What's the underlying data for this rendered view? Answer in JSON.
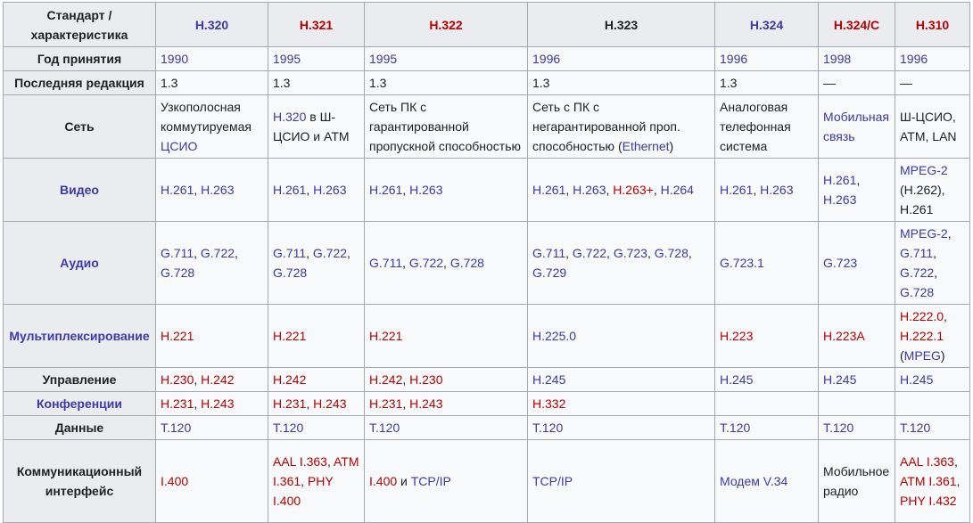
{
  "header": {
    "corner": "Стандарт / характеристика",
    "standards": [
      {
        "label": "H.320",
        "color": "blue"
      },
      {
        "label": "H.321",
        "color": "red"
      },
      {
        "label": "H.322",
        "color": "red"
      },
      {
        "label": "H.323",
        "color": "black"
      },
      {
        "label": "H.324",
        "color": "blue"
      },
      {
        "label": "H.324/C",
        "color": "red"
      },
      {
        "label": "H.310",
        "color": "red"
      }
    ]
  },
  "rows": [
    {
      "key": "year",
      "label": "Год принятия",
      "cells": [
        [
          {
            "t": "1990",
            "c": "blue"
          }
        ],
        [
          {
            "t": "1995",
            "c": "blue"
          }
        ],
        [
          {
            "t": "1995",
            "c": "blue"
          }
        ],
        [
          {
            "t": "1996",
            "c": "blue"
          }
        ],
        [
          {
            "t": "1996",
            "c": "blue"
          }
        ],
        [
          {
            "t": "1998",
            "c": "blue"
          }
        ],
        [
          {
            "t": "1996",
            "c": "blue"
          }
        ]
      ]
    },
    {
      "key": "rev",
      "label": "Последняя редакция",
      "cells": [
        [
          {
            "t": "1.3"
          }
        ],
        [
          {
            "t": "1.3"
          }
        ],
        [
          {
            "t": "1.3"
          }
        ],
        [
          {
            "t": "1.3"
          }
        ],
        [
          {
            "t": "1.3"
          }
        ],
        [
          {
            "t": "—"
          }
        ],
        [
          {
            "t": "—"
          }
        ]
      ]
    },
    {
      "key": "net",
      "label": "Сеть",
      "cells": [
        [
          {
            "t": "Узкополосная коммутируемая "
          },
          {
            "t": "ЦСИО",
            "c": "blue"
          }
        ],
        [
          {
            "t": "H.320",
            "c": "blue"
          },
          {
            "t": " в Ш-ЦСИО и ATM"
          }
        ],
        [
          {
            "t": "Сеть ПК с гарантированной пропускной способностью"
          }
        ],
        [
          {
            "t": "Сеть с ПК с негарантированной проп. способностью ("
          },
          {
            "t": "Ethernet",
            "c": "blue"
          },
          {
            "t": ")"
          }
        ],
        [
          {
            "t": "Аналоговая телефонная система"
          }
        ],
        [
          {
            "t": "Мобильная связь",
            "c": "blue"
          }
        ],
        [
          {
            "t": "Ш-ЦСИО, ATM, LAN"
          }
        ]
      ]
    },
    {
      "key": "video",
      "label": "Видео",
      "label_color": "blue",
      "cells": [
        [
          {
            "t": "H.261",
            "c": "blue"
          },
          {
            "t": ", "
          },
          {
            "t": "H.263",
            "c": "blue"
          }
        ],
        [
          {
            "t": "H.261",
            "c": "blue"
          },
          {
            "t": ", "
          },
          {
            "t": "H.263",
            "c": "blue"
          }
        ],
        [
          {
            "t": "H.261",
            "c": "blue"
          },
          {
            "t": ", "
          },
          {
            "t": "H.263",
            "c": "blue"
          }
        ],
        [
          {
            "t": "H.261",
            "c": "blue"
          },
          {
            "t": ", "
          },
          {
            "t": "H.263",
            "c": "blue"
          },
          {
            "t": ", "
          },
          {
            "t": "H.263+",
            "c": "red"
          },
          {
            "t": ", "
          },
          {
            "t": "H.264",
            "c": "blue"
          }
        ],
        [
          {
            "t": "H.261",
            "c": "blue"
          },
          {
            "t": ", "
          },
          {
            "t": "H.263",
            "c": "blue"
          }
        ],
        [
          {
            "t": "H.261",
            "c": "blue"
          },
          {
            "t": ", "
          },
          {
            "t": "H.263",
            "c": "blue"
          }
        ],
        [
          {
            "t": "MPEG-2",
            "c": "blue"
          },
          {
            "t": " (H.262), H.261"
          }
        ]
      ]
    },
    {
      "key": "audio",
      "label": "Аудио",
      "label_color": "blue",
      "cells": [
        [
          {
            "t": "G.711",
            "c": "blue"
          },
          {
            "t": ", "
          },
          {
            "t": "G.722",
            "c": "blue"
          },
          {
            "t": ", "
          },
          {
            "t": "G.728",
            "c": "blue"
          }
        ],
        [
          {
            "t": "G.711",
            "c": "blue"
          },
          {
            "t": ", "
          },
          {
            "t": "G.722",
            "c": "blue"
          },
          {
            "t": ", "
          },
          {
            "t": "G.728",
            "c": "blue"
          }
        ],
        [
          {
            "t": "G.711",
            "c": "blue"
          },
          {
            "t": ", "
          },
          {
            "t": "G.722",
            "c": "blue"
          },
          {
            "t": ", "
          },
          {
            "t": "G.728",
            "c": "blue"
          }
        ],
        [
          {
            "t": "G.711",
            "c": "blue"
          },
          {
            "t": ", "
          },
          {
            "t": "G.722",
            "c": "blue"
          },
          {
            "t": ", "
          },
          {
            "t": "G.723",
            "c": "blue"
          },
          {
            "t": ", "
          },
          {
            "t": "G.728",
            "c": "blue"
          },
          {
            "t": ", "
          },
          {
            "t": "G.729",
            "c": "blue"
          }
        ],
        [
          {
            "t": "G.723.1",
            "c": "blue"
          }
        ],
        [
          {
            "t": "G.723",
            "c": "blue"
          }
        ],
        [
          {
            "t": "MPEG-2",
            "c": "blue"
          },
          {
            "t": ", "
          },
          {
            "t": "G.711",
            "c": "blue"
          },
          {
            "t": ", "
          },
          {
            "t": "G.722",
            "c": "blue"
          },
          {
            "t": ", "
          },
          {
            "t": "G.728",
            "c": "blue"
          }
        ]
      ]
    },
    {
      "key": "mux",
      "label": "Мультиплексирование",
      "label_color": "blue",
      "cells": [
        [
          {
            "t": "H.221",
            "c": "red"
          }
        ],
        [
          {
            "t": "H.221",
            "c": "red"
          }
        ],
        [
          {
            "t": "H.221",
            "c": "red"
          }
        ],
        [
          {
            "t": "H.225.0",
            "c": "blue"
          }
        ],
        [
          {
            "t": "H.223",
            "c": "red"
          }
        ],
        [
          {
            "t": "H.223A",
            "c": "red"
          }
        ],
        [
          {
            "t": "H.222.0",
            "c": "red"
          },
          {
            "t": ", "
          },
          {
            "t": "H.222.1",
            "c": "red"
          },
          {
            "t": " ("
          },
          {
            "t": "MPEG",
            "c": "blue"
          },
          {
            "t": ")"
          }
        ]
      ]
    },
    {
      "key": "control",
      "label": "Управление",
      "cells": [
        [
          {
            "t": "H.230",
            "c": "red"
          },
          {
            "t": ", "
          },
          {
            "t": "H.242",
            "c": "red"
          }
        ],
        [
          {
            "t": "H.242",
            "c": "red"
          }
        ],
        [
          {
            "t": "H.242",
            "c": "red"
          },
          {
            "t": ", "
          },
          {
            "t": "H.230",
            "c": "red"
          }
        ],
        [
          {
            "t": "H.245",
            "c": "blue"
          }
        ],
        [
          {
            "t": "H.245",
            "c": "blue"
          }
        ],
        [
          {
            "t": "H.245",
            "c": "blue"
          }
        ],
        [
          {
            "t": "H.245",
            "c": "blue"
          }
        ]
      ]
    },
    {
      "key": "conf",
      "label": "Конференции",
      "label_color": "blue",
      "cells": [
        [
          {
            "t": "H.231",
            "c": "red"
          },
          {
            "t": ", "
          },
          {
            "t": "H.243",
            "c": "red"
          }
        ],
        [
          {
            "t": "H.231",
            "c": "red"
          },
          {
            "t": ", "
          },
          {
            "t": "H.243",
            "c": "red"
          }
        ],
        [
          {
            "t": "H.231",
            "c": "red"
          },
          {
            "t": ", "
          },
          {
            "t": "H.243",
            "c": "red"
          }
        ],
        [
          {
            "t": "H.332",
            "c": "red"
          }
        ],
        [],
        [],
        []
      ]
    },
    {
      "key": "data",
      "label": "Данные",
      "cells": [
        [
          {
            "t": "T.120",
            "c": "blue"
          }
        ],
        [
          {
            "t": "T.120",
            "c": "blue"
          }
        ],
        [
          {
            "t": "T.120",
            "c": "blue"
          }
        ],
        [
          {
            "t": "T.120",
            "c": "blue"
          }
        ],
        [
          {
            "t": "T.120",
            "c": "blue"
          }
        ],
        [
          {
            "t": "T.120",
            "c": "blue"
          }
        ],
        [
          {
            "t": "T.120",
            "c": "blue"
          }
        ]
      ]
    },
    {
      "key": "comm",
      "label": "Коммуникационный интерфейс",
      "cells": [
        [
          {
            "t": "I.400",
            "c": "red"
          }
        ],
        [
          {
            "t": "AAL I.363",
            "c": "red"
          },
          {
            "t": ", "
          },
          {
            "t": "ATM I.361",
            "c": "red"
          },
          {
            "t": ", "
          },
          {
            "t": "PHY I.400",
            "c": "red"
          }
        ],
        [
          {
            "t": "I.400",
            "c": "red"
          },
          {
            "t": " и "
          },
          {
            "t": "TCP/IP",
            "c": "blue"
          }
        ],
        [
          {
            "t": "TCP/IP",
            "c": "blue"
          }
        ],
        [
          {
            "t": "Модем",
            "c": "blue"
          },
          {
            "t": " "
          },
          {
            "t": "V.34",
            "c": "blue"
          }
        ],
        [
          {
            "t": "Мобильное радио"
          }
        ],
        [
          {
            "t": "AAL I.363",
            "c": "red"
          },
          {
            "t": ", "
          },
          {
            "t": "ATM I.361",
            "c": "red"
          },
          {
            "t": ", "
          },
          {
            "t": "PHY I.432",
            "c": "red"
          }
        ]
      ]
    }
  ]
}
